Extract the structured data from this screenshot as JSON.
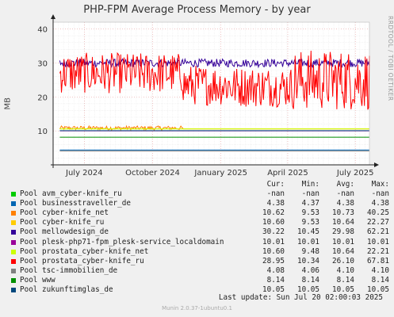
{
  "title": "PHP-FPM Average Process Memory - by year",
  "side_text": "RRDTOOL / TOBI OETIKER",
  "footer": "Last update: Sun Jul 20 02:00:03 2025",
  "munin": "Munin 2.0.37-1ubuntu0.1",
  "chart_data": {
    "type": "line",
    "ylabel": "MB",
    "ylim": [
      0,
      42
    ],
    "yticks": [
      0,
      10,
      20,
      30,
      40
    ],
    "xticks": [
      "July 2024",
      "October 2024",
      "January 2025",
      "April 2025",
      "July 2025"
    ],
    "x_range": [
      "2024-05-20",
      "2025-07-20"
    ],
    "xtick_dates": [
      "2024-07-01",
      "2024-10-01",
      "2025-01-01",
      "2025-04-01",
      "2025-07-01"
    ],
    "legend_headers": [
      "Cur:",
      "Min:",
      "Avg:",
      "Max:"
    ],
    "series": [
      {
        "name": "Pool avm_cyber-knife_ru",
        "color": "#00cc00",
        "cur": "-nan",
        "min": "-nan",
        "avg": "-nan",
        "max": "-nan"
      },
      {
        "name": "Pool businesstraveller_de",
        "color": "#0066b3",
        "cur": "4.38",
        "min": "4.37",
        "avg": "4.38",
        "max": "4.38"
      },
      {
        "name": "Pool cyber-knife_net",
        "color": "#ff8000",
        "cur": "10.62",
        "min": "9.53",
        "avg": "10.73",
        "max": "40.25"
      },
      {
        "name": "Pool cyber-knife_ru",
        "color": "#ffcc00",
        "cur": "10.60",
        "min": "9.53",
        "avg": "10.64",
        "max": "22.27"
      },
      {
        "name": "Pool mellowdesign_de",
        "color": "#330099",
        "cur": "30.22",
        "min": "10.45",
        "avg": "29.98",
        "max": "62.21"
      },
      {
        "name": "Pool plesk-php71-fpm_plesk-service_localdomain",
        "color": "#990099",
        "cur": "10.01",
        "min": "10.01",
        "avg": "10.01",
        "max": "10.01"
      },
      {
        "name": "Pool prostata_cyber-knife_net",
        "color": "#ccff00",
        "cur": "10.60",
        "min": "9.48",
        "avg": "10.64",
        "max": "22.21"
      },
      {
        "name": "Pool prostata_cyber-knife_ru",
        "color": "#ff0000",
        "cur": "28.95",
        "min": "10.34",
        "avg": "26.10",
        "max": "67.81"
      },
      {
        "name": "Pool tsc-immobilien_de",
        "color": "#808080",
        "cur": "4.08",
        "min": "4.06",
        "avg": "4.10",
        "max": "4.10"
      },
      {
        "name": "Pool www",
        "color": "#008f00",
        "cur": "8.14",
        "min": "8.14",
        "avg": "8.14",
        "max": "8.14"
      },
      {
        "name": "Pool zukunftimglas_de",
        "color": "#00487d",
        "cur": "10.05",
        "min": "10.05",
        "avg": "10.05",
        "max": "10.05"
      }
    ]
  }
}
